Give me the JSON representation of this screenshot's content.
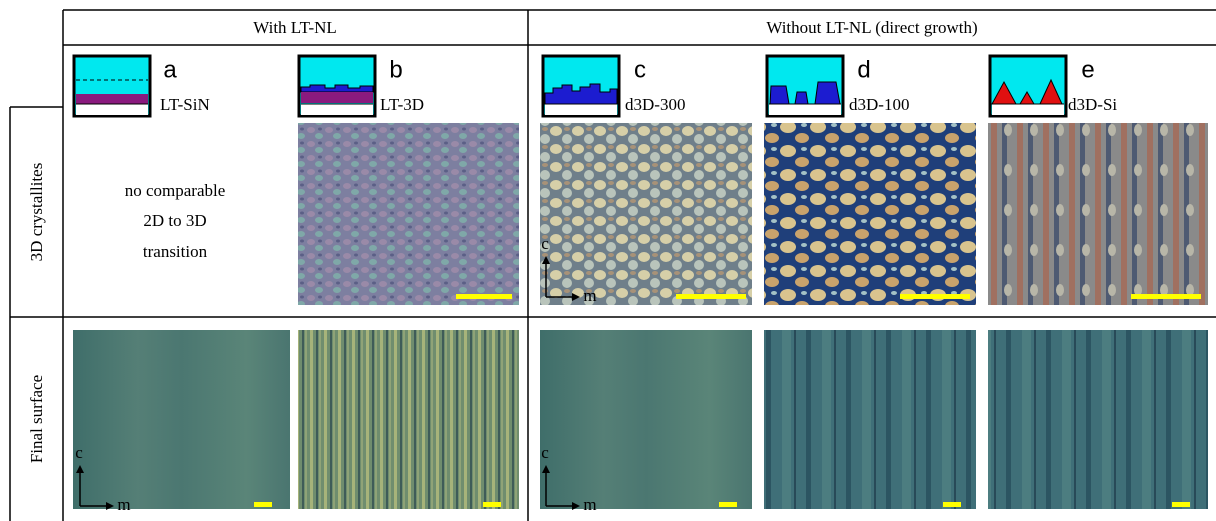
{
  "header": {
    "columns": [
      "With LT-NL",
      "Without LT-NL (direct growth)"
    ]
  },
  "rows": [
    "3D crystallites",
    "Final surface"
  ],
  "panels": [
    {
      "letter": "a",
      "label": "LT-SiN"
    },
    {
      "letter": "b",
      "label": "LT-3D"
    },
    {
      "letter": "c",
      "label": "d3D-300"
    },
    {
      "letter": "d",
      "label": "d3D-100"
    },
    {
      "letter": "e",
      "label": "d3D-Si"
    }
  ],
  "note": [
    "no comparable",
    "2D to 3D",
    "transition"
  ],
  "axis_labels": [
    "c",
    "m"
  ]
}
